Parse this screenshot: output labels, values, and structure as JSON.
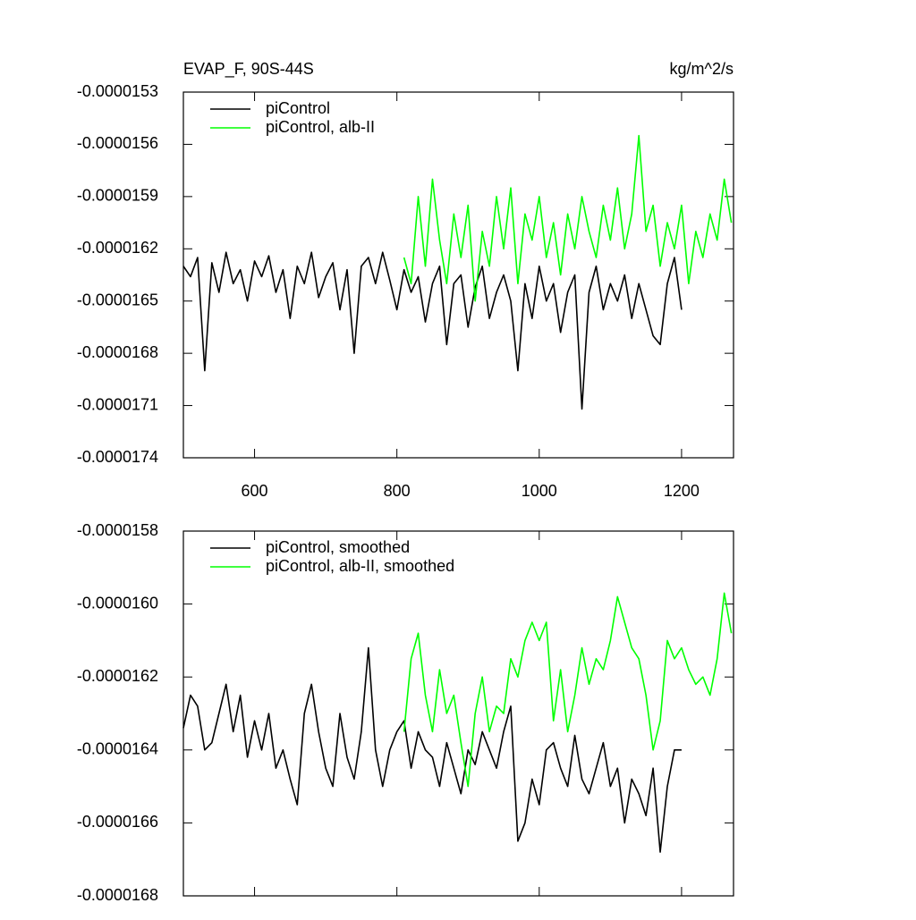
{
  "chart_data": [
    {
      "type": "line",
      "title": "EVAP_F, 90S-44S",
      "units": "kg/m^2/s",
      "x": [
        500,
        510,
        520,
        530,
        540,
        550,
        560,
        570,
        580,
        590,
        600,
        610,
        620,
        630,
        640,
        650,
        660,
        670,
        680,
        690,
        700,
        710,
        720,
        730,
        740,
        750,
        760,
        770,
        780,
        790,
        800,
        810,
        820,
        830,
        840,
        850,
        860,
        870,
        880,
        890,
        900,
        910,
        920,
        930,
        940,
        950,
        960,
        970,
        980,
        990,
        1000,
        1010,
        1020,
        1030,
        1040,
        1050,
        1060,
        1070,
        1080,
        1090,
        1100,
        1110,
        1120,
        1130,
        1140,
        1150,
        1160,
        1170,
        1180,
        1190,
        1200,
        1210,
        1220,
        1230,
        1240,
        1250,
        1260,
        1270
      ],
      "xlim": [
        500,
        1273
      ],
      "xticks": [
        600,
        800,
        1000,
        1200
      ],
      "ylim": [
        -1.74e-05,
        -1.53e-05
      ],
      "yticks": [
        -1.53e-05,
        -1.56e-05,
        -1.59e-05,
        -1.62e-05,
        -1.65e-05,
        -1.68e-05,
        -1.71e-05,
        -1.74e-05
      ],
      "series": [
        {
          "name": "piControl",
          "color": "#000000",
          "values": [
            -1.63e-05,
            -1.636e-05,
            -1.625e-05,
            -1.69e-05,
            -1.628e-05,
            -1.645e-05,
            -1.622e-05,
            -1.64e-05,
            -1.632e-05,
            -1.65e-05,
            -1.627e-05,
            -1.636e-05,
            -1.624e-05,
            -1.645e-05,
            -1.632e-05,
            -1.66e-05,
            -1.63e-05,
            -1.64e-05,
            -1.622e-05,
            -1.648e-05,
            -1.636e-05,
            -1.628e-05,
            -1.655e-05,
            -1.632e-05,
            -1.68e-05,
            -1.63e-05,
            -1.625e-05,
            -1.64e-05,
            -1.622e-05,
            -1.638e-05,
            -1.655e-05,
            -1.632e-05,
            -1.645e-05,
            -1.636e-05,
            -1.662e-05,
            -1.64e-05,
            -1.63e-05,
            -1.675e-05,
            -1.64e-05,
            -1.635e-05,
            -1.665e-05,
            -1.642e-05,
            -1.63e-05,
            -1.66e-05,
            -1.645e-05,
            -1.635e-05,
            -1.65e-05,
            -1.69e-05,
            -1.64e-05,
            -1.66e-05,
            -1.63e-05,
            -1.65e-05,
            -1.64e-05,
            -1.668e-05,
            -1.645e-05,
            -1.635e-05,
            -1.712e-05,
            -1.645e-05,
            -1.63e-05,
            -1.655e-05,
            -1.64e-05,
            -1.65e-05,
            -1.635e-05,
            -1.66e-05,
            -1.64e-05,
            -1.655e-05,
            -1.67e-05,
            -1.675e-05,
            -1.64e-05,
            -1.625e-05,
            -1.655e-05,
            null,
            null,
            null,
            null,
            null,
            null,
            null
          ]
        },
        {
          "name": "piControl, alb-II",
          "color": "#00ff00",
          "values": [
            null,
            null,
            null,
            null,
            null,
            null,
            null,
            null,
            null,
            null,
            null,
            null,
            null,
            null,
            null,
            null,
            null,
            null,
            null,
            null,
            null,
            null,
            null,
            null,
            null,
            null,
            null,
            null,
            null,
            null,
            null,
            -1.625e-05,
            -1.64e-05,
            -1.59e-05,
            -1.63e-05,
            -1.58e-05,
            -1.615e-05,
            -1.64e-05,
            -1.6e-05,
            -1.625e-05,
            -1.595e-05,
            -1.65e-05,
            -1.61e-05,
            -1.63e-05,
            -1.59e-05,
            -1.62e-05,
            -1.585e-05,
            -1.64e-05,
            -1.6e-05,
            -1.615e-05,
            -1.59e-05,
            -1.625e-05,
            -1.605e-05,
            -1.635e-05,
            -1.6e-05,
            -1.62e-05,
            -1.59e-05,
            -1.61e-05,
            -1.625e-05,
            -1.595e-05,
            -1.615e-05,
            -1.585e-05,
            -1.62e-05,
            -1.6e-05,
            -1.555e-05,
            -1.61e-05,
            -1.595e-05,
            -1.63e-05,
            -1.605e-05,
            -1.62e-05,
            -1.595e-05,
            -1.64e-05,
            -1.61e-05,
            -1.625e-05,
            -1.6e-05,
            -1.615e-05,
            -1.58e-05,
            -1.605e-05
          ]
        }
      ]
    },
    {
      "type": "line",
      "x": [
        500,
        510,
        520,
        530,
        540,
        550,
        560,
        570,
        580,
        590,
        600,
        610,
        620,
        630,
        640,
        650,
        660,
        670,
        680,
        690,
        700,
        710,
        720,
        730,
        740,
        750,
        760,
        770,
        780,
        790,
        800,
        810,
        820,
        830,
        840,
        850,
        860,
        870,
        880,
        890,
        900,
        910,
        920,
        930,
        940,
        950,
        960,
        970,
        980,
        990,
        1000,
        1010,
        1020,
        1030,
        1040,
        1050,
        1060,
        1070,
        1080,
        1090,
        1100,
        1110,
        1120,
        1130,
        1140,
        1150,
        1160,
        1170,
        1180,
        1190,
        1200,
        1210,
        1220,
        1230,
        1240,
        1250,
        1260,
        1270
      ],
      "xlim": [
        500,
        1273
      ],
      "xticks": [
        600,
        800,
        1000,
        1200
      ],
      "ylim": [
        -1.68e-05,
        -1.58e-05
      ],
      "yticks": [
        -1.58e-05,
        {
          "value": -1.6e-05,
          "label": "-0.0000160"
        },
        -1.62e-05,
        -1.64e-05,
        -1.66e-05,
        -1.68e-05
      ],
      "series": [
        {
          "name": "piControl, smoothed",
          "color": "#000000",
          "values": [
            -1.634e-05,
            -1.625e-05,
            -1.628e-05,
            -1.64e-05,
            -1.638e-05,
            -1.63e-05,
            -1.622e-05,
            -1.635e-05,
            -1.625e-05,
            -1.642e-05,
            -1.632e-05,
            -1.64e-05,
            -1.63e-05,
            -1.645e-05,
            -1.64e-05,
            -1.648e-05,
            -1.655e-05,
            -1.63e-05,
            -1.622e-05,
            -1.635e-05,
            -1.645e-05,
            -1.65e-05,
            -1.63e-05,
            -1.642e-05,
            -1.648e-05,
            -1.635e-05,
            -1.612e-05,
            -1.64e-05,
            -1.65e-05,
            -1.64e-05,
            -1.635e-05,
            -1.632e-05,
            -1.645e-05,
            -1.635e-05,
            -1.64e-05,
            -1.642e-05,
            -1.65e-05,
            -1.638e-05,
            -1.645e-05,
            -1.652e-05,
            -1.64e-05,
            -1.644e-05,
            -1.635e-05,
            -1.64e-05,
            -1.645e-05,
            -1.635e-05,
            -1.628e-05,
            -1.665e-05,
            -1.66e-05,
            -1.648e-05,
            -1.655e-05,
            -1.64e-05,
            -1.638e-05,
            -1.645e-05,
            -1.65e-05,
            -1.636e-05,
            -1.648e-05,
            -1.652e-05,
            -1.645e-05,
            -1.638e-05,
            -1.65e-05,
            -1.645e-05,
            -1.66e-05,
            -1.648e-05,
            -1.652e-05,
            -1.658e-05,
            -1.645e-05,
            -1.668e-05,
            -1.65e-05,
            -1.64e-05,
            -1.64e-05,
            null,
            null,
            null,
            null,
            null,
            null,
            null
          ]
        },
        {
          "name": "piControl, alb-II, smoothed",
          "color": "#00ff00",
          "values": [
            null,
            null,
            null,
            null,
            null,
            null,
            null,
            null,
            null,
            null,
            null,
            null,
            null,
            null,
            null,
            null,
            null,
            null,
            null,
            null,
            null,
            null,
            null,
            null,
            null,
            null,
            null,
            null,
            null,
            null,
            null,
            -1.635e-05,
            -1.615e-05,
            -1.608e-05,
            -1.625e-05,
            -1.635e-05,
            -1.618e-05,
            -1.63e-05,
            -1.625e-05,
            -1.638e-05,
            -1.65e-05,
            -1.63e-05,
            -1.62e-05,
            -1.635e-05,
            -1.628e-05,
            -1.63e-05,
            -1.615e-05,
            -1.62e-05,
            -1.61e-05,
            -1.605e-05,
            -1.61e-05,
            -1.605e-05,
            -1.632e-05,
            -1.618e-05,
            -1.635e-05,
            -1.625e-05,
            -1.612e-05,
            -1.622e-05,
            -1.615e-05,
            -1.618e-05,
            -1.61e-05,
            -1.598e-05,
            -1.605e-05,
            -1.612e-05,
            -1.615e-05,
            -1.625e-05,
            -1.64e-05,
            -1.632e-05,
            -1.61e-05,
            -1.615e-05,
            -1.612e-05,
            -1.618e-05,
            -1.622e-05,
            -1.62e-05,
            -1.625e-05,
            -1.615e-05,
            -1.597e-05,
            -1.608e-05
          ]
        }
      ]
    }
  ]
}
